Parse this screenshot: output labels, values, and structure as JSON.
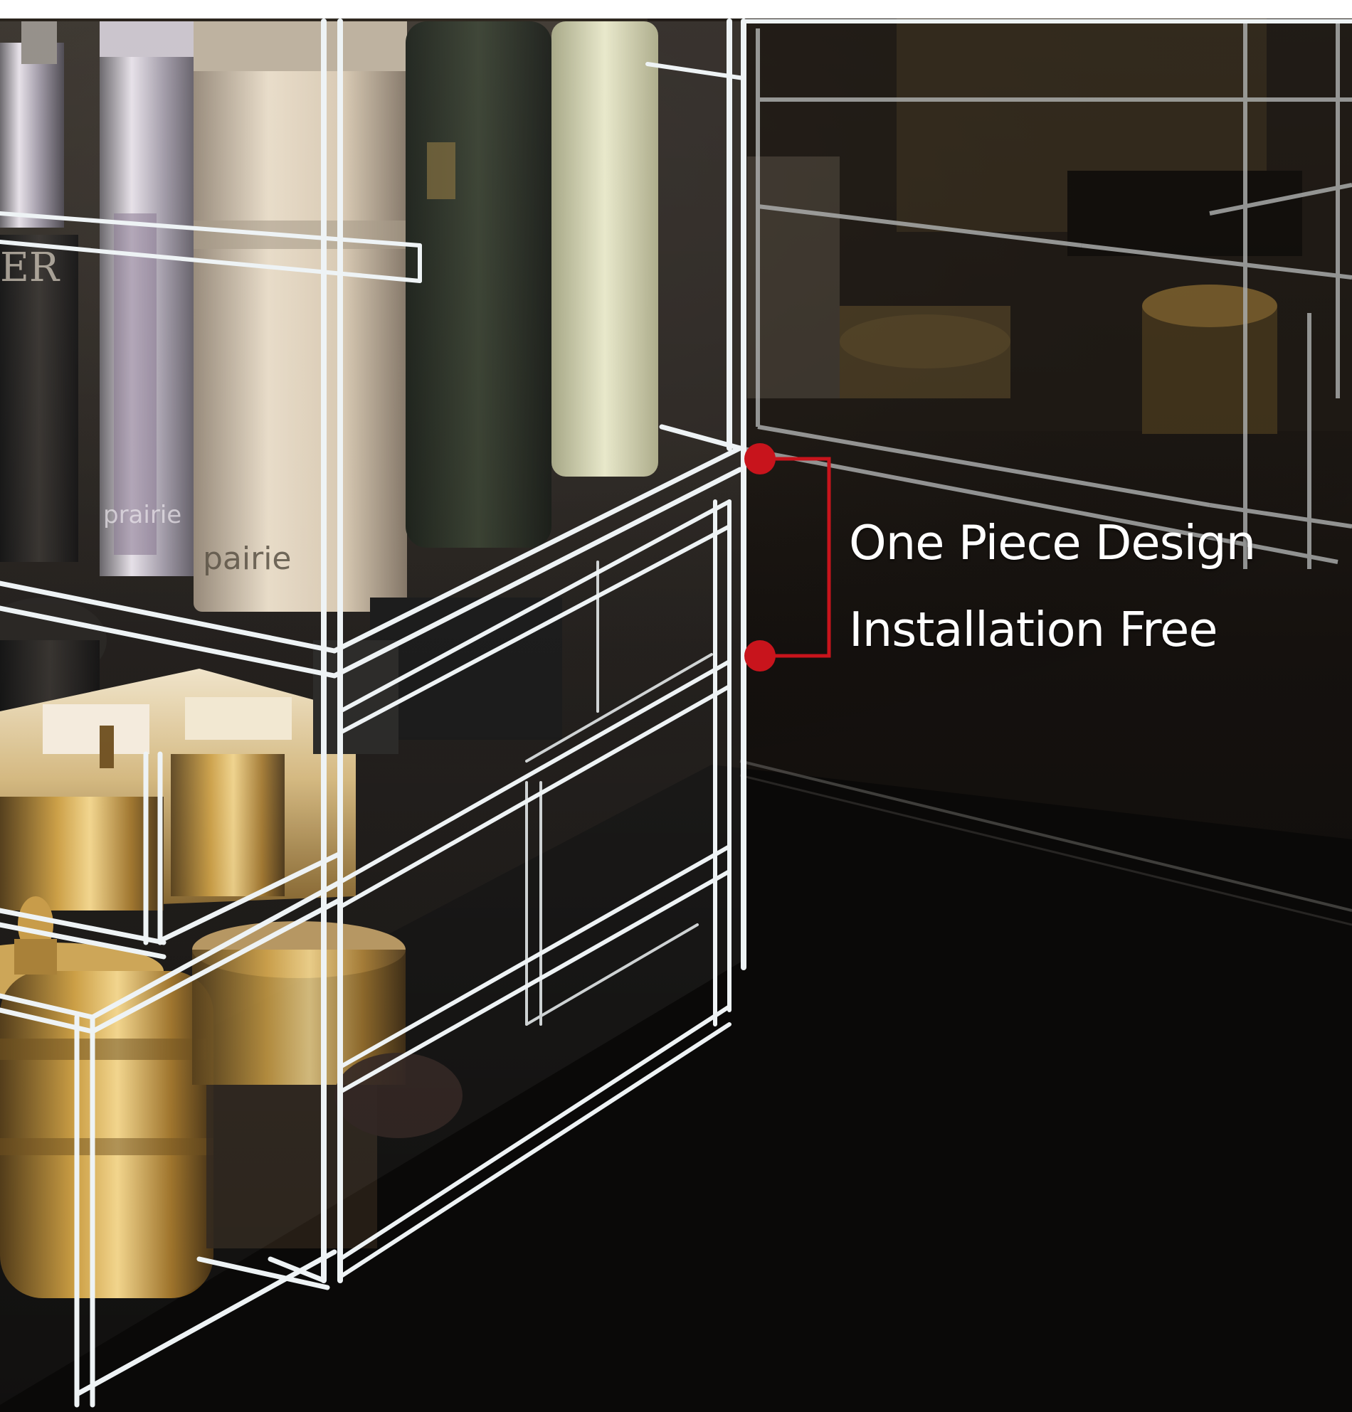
{
  "callout": {
    "line1": "One Piece Design",
    "line2": "Installation Free",
    "marker_color": "#c8141c",
    "text_color": "#ffffff"
  },
  "scene": {
    "background_color": "#0d0b0a",
    "acrylic_edge_color": "#e9eef0"
  },
  "product_labels": {
    "bottle_label_a": "pairie",
    "bottle_label_b": "prairie",
    "bottle_label_c": "ER"
  }
}
